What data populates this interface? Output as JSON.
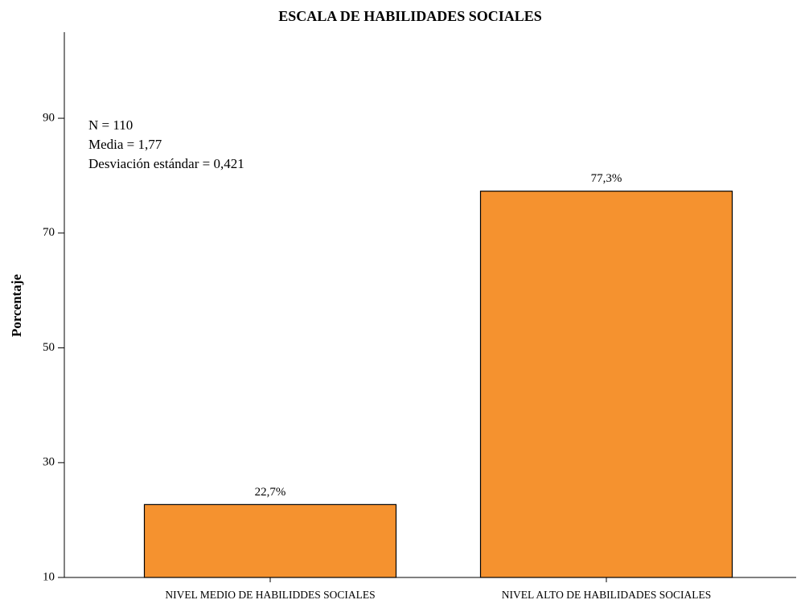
{
  "chart_data": {
    "type": "bar",
    "title": "ESCALA DE HABILIDADES SOCIALES",
    "y_label": "Porcentaje",
    "categories": [
      "NIVEL MEDIO DE HABILIDDES SOCIALES",
      "NIVEL ALTO DE HABILIDADES SOCIALES"
    ],
    "values": [
      22.7,
      77.3
    ],
    "value_labels": [
      "22,7%",
      "77,3%"
    ],
    "color": "#f5922f",
    "ylim": [
      10,
      105
    ],
    "yticks": [
      10,
      30,
      50,
      70,
      90
    ],
    "grid": false,
    "annotations": [
      "N = 110",
      "Media = 1,77",
      "Desviación estándar = 0,421"
    ]
  }
}
